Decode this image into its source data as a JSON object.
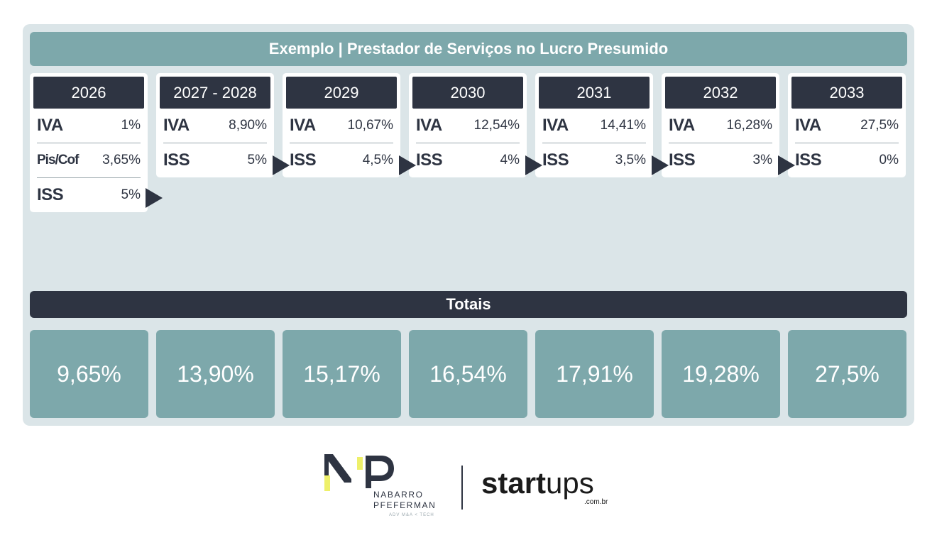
{
  "title": "Exemplo | Prestador de Serviços no Lucro Presumido",
  "years": [
    {
      "year": "2026",
      "rows": [
        {
          "label": "IVA",
          "value": "1%"
        },
        {
          "label": "Pis/Cof",
          "value": "3,65%"
        },
        {
          "label": "ISS",
          "value": "5%"
        }
      ]
    },
    {
      "year": "2027 - 2028",
      "rows": [
        {
          "label": "IVA",
          "value": "8,90%"
        },
        {
          "label": "ISS",
          "value": "5%"
        }
      ]
    },
    {
      "year": "2029",
      "rows": [
        {
          "label": "IVA",
          "value": "10,67%"
        },
        {
          "label": "ISS",
          "value": "4,5%"
        }
      ]
    },
    {
      "year": "2030",
      "rows": [
        {
          "label": "IVA",
          "value": "12,54%"
        },
        {
          "label": "ISS",
          "value": "4%"
        }
      ]
    },
    {
      "year": "2031",
      "rows": [
        {
          "label": "IVA",
          "value": "14,41%"
        },
        {
          "label": "ISS",
          "value": "3,5%"
        }
      ]
    },
    {
      "year": "2032",
      "rows": [
        {
          "label": "IVA",
          "value": "16,28%"
        },
        {
          "label": "ISS",
          "value": "3%"
        }
      ]
    },
    {
      "year": "2033",
      "rows": [
        {
          "label": "IVA",
          "value": "27,5%"
        },
        {
          "label": "ISS",
          "value": "0%"
        }
      ]
    }
  ],
  "totals_label": "Totais",
  "totals": [
    "9,65%",
    "13,90%",
    "15,17%",
    "16,54%",
    "17,91%",
    "19,28%",
    "27,5%"
  ],
  "logos": {
    "np_line1": "NABARRO",
    "np_line2": "PFEFERMAN",
    "np_tagline": "ADV M&A < TECH",
    "startups_bold": "start",
    "startups_light": "ups",
    "startups_suffix": ".com.br"
  },
  "colors": {
    "panel_bg": "#dbe5e8",
    "teal": "#7da8ab",
    "navy": "#2e3442",
    "accent_yellow": "#eef06a"
  }
}
